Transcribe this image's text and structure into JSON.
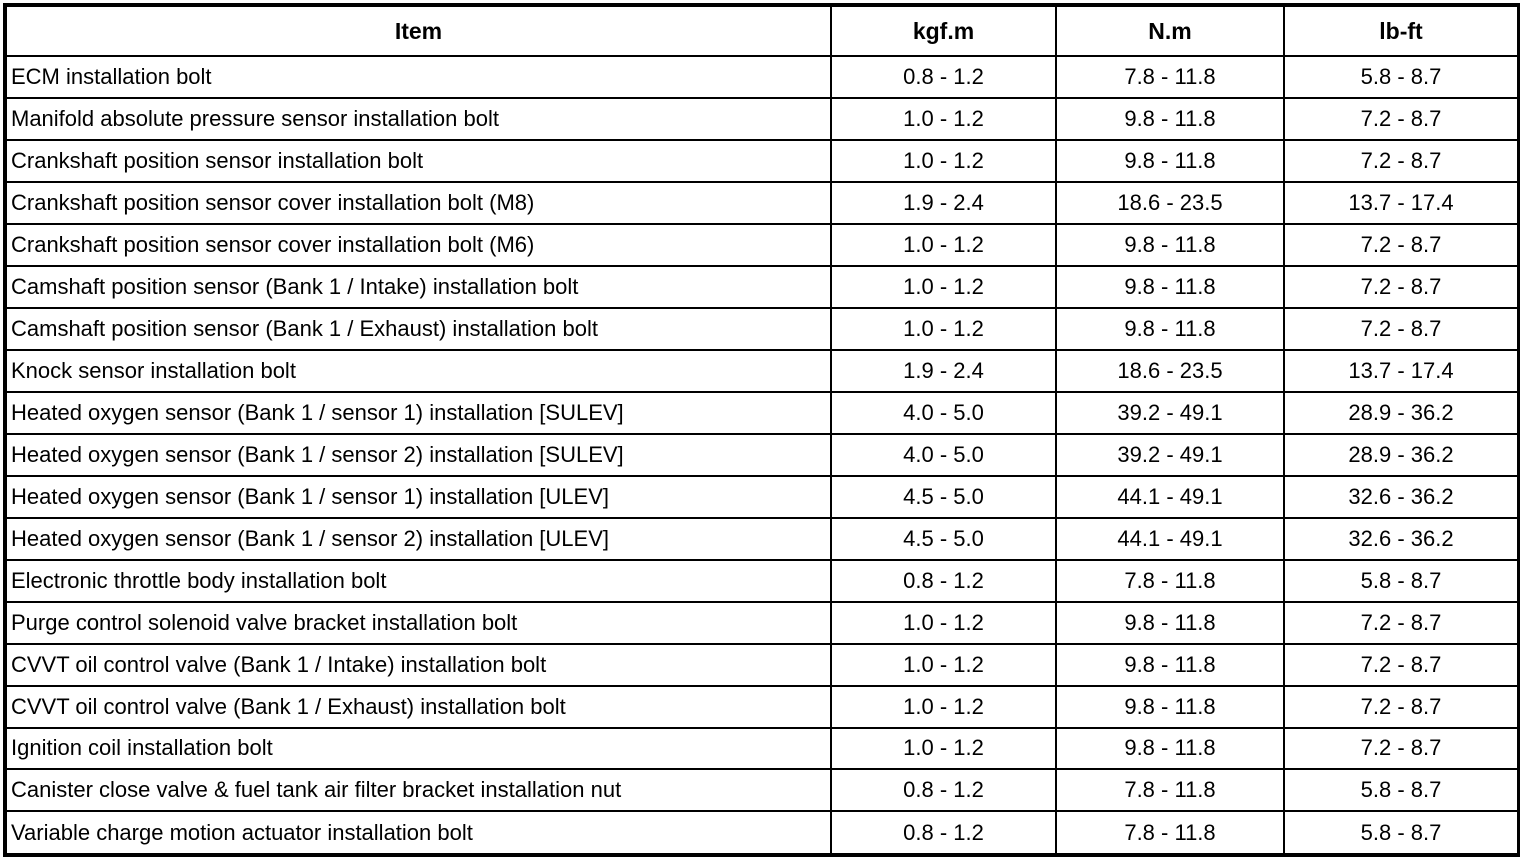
{
  "table": {
    "headers": [
      "Item",
      "kgf.m",
      "N.m",
      "lb-ft"
    ],
    "rows": [
      {
        "item": "ECM installation bolt",
        "kgf_m": "0.8 - 1.2",
        "n_m": "7.8 - 11.8",
        "lb_ft": "5.8 - 8.7"
      },
      {
        "item": "Manifold absolute pressure sensor installation bolt",
        "kgf_m": "1.0 - 1.2",
        "n_m": "9.8 - 11.8",
        "lb_ft": "7.2 - 8.7"
      },
      {
        "item": "Crankshaft position sensor installation bolt",
        "kgf_m": "1.0 - 1.2",
        "n_m": "9.8 - 11.8",
        "lb_ft": "7.2 - 8.7"
      },
      {
        "item": "Crankshaft position sensor cover installation bolt (M8)",
        "kgf_m": "1.9 - 2.4",
        "n_m": "18.6 - 23.5",
        "lb_ft": "13.7 - 17.4"
      },
      {
        "item": "Crankshaft position sensor cover installation bolt (M6)",
        "kgf_m": "1.0 - 1.2",
        "n_m": "9.8 - 11.8",
        "lb_ft": "7.2 - 8.7"
      },
      {
        "item": "Camshaft position sensor (Bank 1 / Intake) installation bolt",
        "kgf_m": "1.0 - 1.2",
        "n_m": "9.8 - 11.8",
        "lb_ft": "7.2 - 8.7"
      },
      {
        "item": "Camshaft position sensor (Bank 1 / Exhaust) installation bolt",
        "kgf_m": "1.0 - 1.2",
        "n_m": "9.8 - 11.8",
        "lb_ft": "7.2 - 8.7"
      },
      {
        "item": "Knock sensor installation bolt",
        "kgf_m": "1.9 - 2.4",
        "n_m": "18.6 - 23.5",
        "lb_ft": "13.7 - 17.4"
      },
      {
        "item": "Heated oxygen sensor (Bank 1 / sensor 1) installation [SULEV]",
        "kgf_m": "4.0 - 5.0",
        "n_m": "39.2 - 49.1",
        "lb_ft": "28.9 - 36.2"
      },
      {
        "item": "Heated oxygen sensor (Bank 1 / sensor 2) installation [SULEV]",
        "kgf_m": "4.0 - 5.0",
        "n_m": "39.2 - 49.1",
        "lb_ft": "28.9 - 36.2"
      },
      {
        "item": "Heated oxygen sensor (Bank 1 / sensor 1) installation [ULEV]",
        "kgf_m": "4.5 - 5.0",
        "n_m": "44.1 - 49.1",
        "lb_ft": "32.6 - 36.2"
      },
      {
        "item": "Heated oxygen sensor (Bank 1 / sensor 2) installation [ULEV]",
        "kgf_m": "4.5 - 5.0",
        "n_m": "44.1 - 49.1",
        "lb_ft": "32.6 - 36.2"
      },
      {
        "item": "Electronic throttle body installation bolt",
        "kgf_m": "0.8 - 1.2",
        "n_m": "7.8 - 11.8",
        "lb_ft": "5.8 - 8.7"
      },
      {
        "item": "Purge control solenoid valve bracket installation bolt",
        "kgf_m": "1.0 - 1.2",
        "n_m": "9.8 - 11.8",
        "lb_ft": "7.2 - 8.7"
      },
      {
        "item": "CVVT oil control valve (Bank 1 / Intake) installation bolt",
        "kgf_m": "1.0 - 1.2",
        "n_m": "9.8 - 11.8",
        "lb_ft": "7.2 - 8.7"
      },
      {
        "item": "CVVT oil control valve (Bank 1 / Exhaust) installation bolt",
        "kgf_m": "1.0 - 1.2",
        "n_m": "9.8 - 11.8",
        "lb_ft": "7.2 - 8.7"
      },
      {
        "item": "Ignition coil installation bolt",
        "kgf_m": "1.0 - 1.2",
        "n_m": "9.8 - 11.8",
        "lb_ft": "7.2 - 8.7"
      },
      {
        "item": "Canister close valve & fuel tank air filter bracket installation nut",
        "kgf_m": "0.8 - 1.2",
        "n_m": "7.8 - 11.8",
        "lb_ft": "5.8 - 8.7"
      },
      {
        "item": "Variable charge motion actuator installation bolt",
        "kgf_m": "0.8 - 1.2",
        "n_m": "7.8 - 11.8",
        "lb_ft": "5.8 - 8.7"
      }
    ],
    "colors": {
      "border": "#000000",
      "text": "#000000",
      "background": "#ffffff"
    }
  }
}
